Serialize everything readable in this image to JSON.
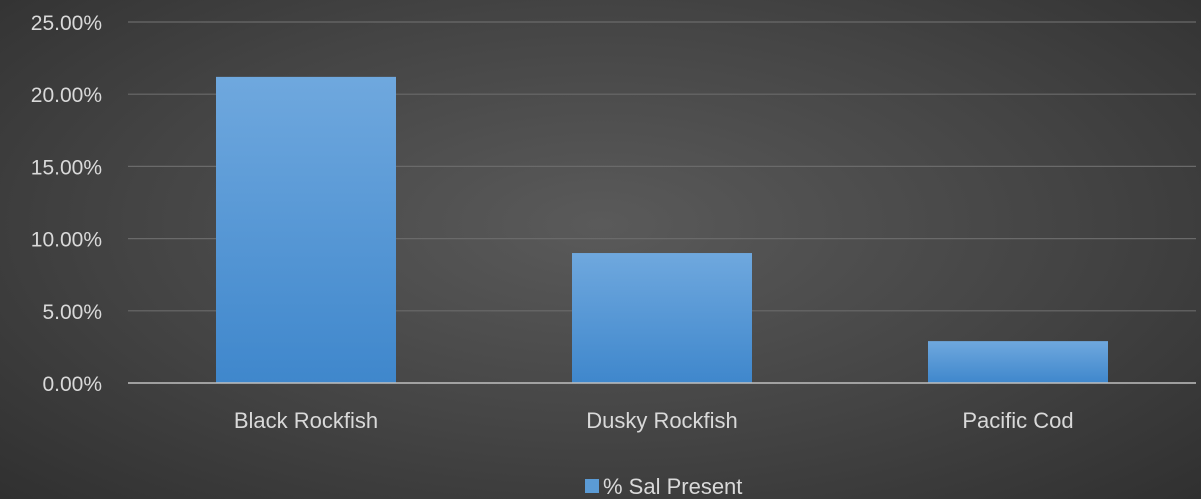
{
  "colors": {
    "bar": "#5b9bd5",
    "bar_light": "#6fa8de",
    "bar_dark": "#3f87cc",
    "gridline": "#6a6a6a",
    "axis_line": "#bfbfbf",
    "text": "#d9d9d9"
  },
  "chart_data": {
    "type": "bar",
    "title": "",
    "xlabel": "",
    "ylabel": "",
    "categories": [
      "Black Rockfish",
      "Dusky Rockfish",
      "Pacific Cod"
    ],
    "series": [
      {
        "name": "% Sal Present",
        "values": [
          0.212,
          0.09,
          0.029
        ]
      }
    ],
    "ylim": [
      0,
      0.25
    ],
    "y_ticks": [
      0,
      0.05,
      0.1,
      0.15,
      0.2,
      0.25
    ],
    "y_tick_labels": [
      "0.00%",
      "5.00%",
      "10.00%",
      "15.00%",
      "20.00%",
      "25.00%"
    ],
    "grid": true,
    "legend_position": "bottom"
  }
}
